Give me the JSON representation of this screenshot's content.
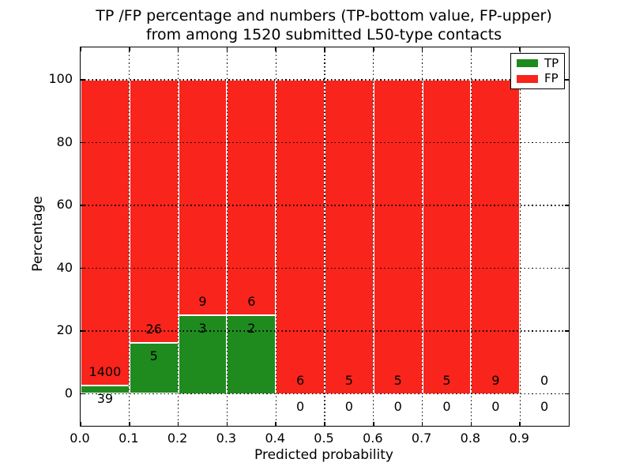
{
  "title": {
    "line1": "TP /FP percentage and numbers (TP-bottom value, FP-upper)",
    "line2": "from among 1520 submitted L50-type contacts"
  },
  "axes": {
    "xlabel": "Predicted probability",
    "ylabel": "Percentage"
  },
  "chart_data": {
    "type": "bar",
    "stacked": true,
    "title": "TP /FP percentage and numbers (TP-bottom value, FP-upper) from among 1520 submitted L50-type contacts",
    "xlabel": "Predicted probability",
    "ylabel": "Percentage",
    "xlim": [
      0.0,
      1.0
    ],
    "ylim": [
      -10,
      110
    ],
    "xticks": [
      "0.0",
      "0.1",
      "0.2",
      "0.3",
      "0.4",
      "0.5",
      "0.6",
      "0.7",
      "0.8",
      "0.9"
    ],
    "yticks": [
      0,
      20,
      40,
      60,
      80,
      100
    ],
    "grid": "dotted",
    "legend_position": "upper right",
    "bar_edge_color": "#ffffff",
    "bin_width": 0.1,
    "bins_x0": [
      0.0,
      0.1,
      0.2,
      0.3,
      0.4,
      0.5,
      0.6,
      0.7,
      0.8,
      0.9
    ],
    "series": [
      {
        "name": "TP",
        "color": "#1f8b1f",
        "counts": [
          39,
          5,
          3,
          2,
          0,
          0,
          0,
          0,
          0,
          0
        ]
      },
      {
        "name": "FP",
        "color": "#f9241b",
        "counts": [
          1400,
          26,
          9,
          6,
          6,
          5,
          5,
          5,
          9,
          0
        ]
      }
    ],
    "total_submitted": 1520
  }
}
